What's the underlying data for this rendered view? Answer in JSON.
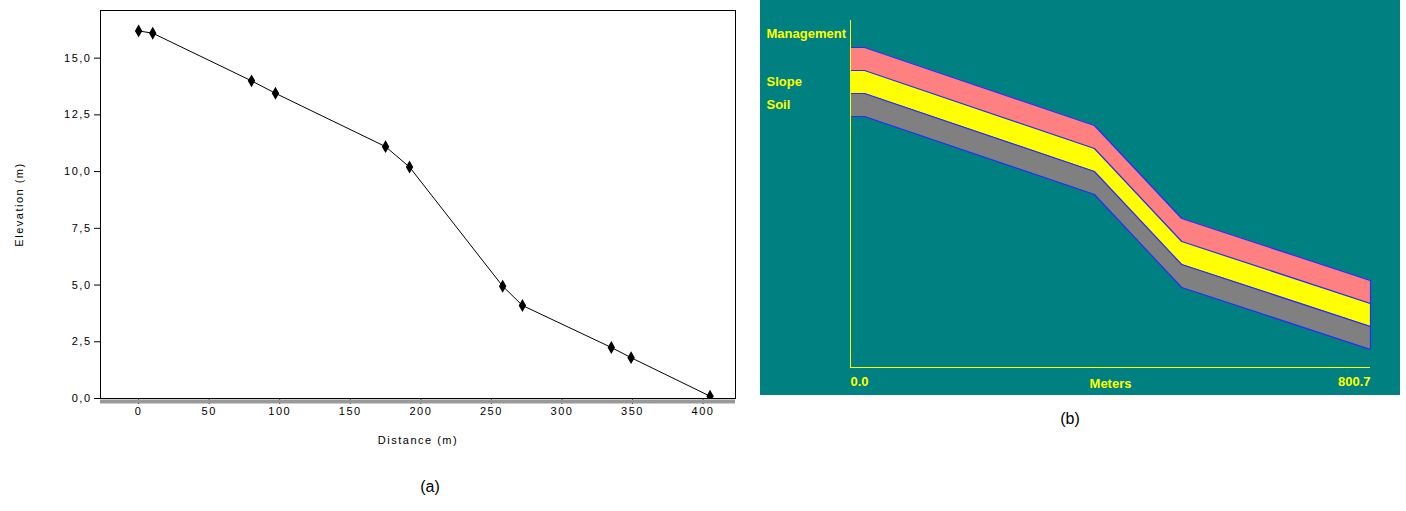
{
  "chart_data": [
    {
      "type": "line",
      "panel": "(a)",
      "color": "#000000",
      "marker": "diamond",
      "grid": false,
      "x": [
        0,
        10,
        80,
        97,
        175,
        192,
        258,
        272,
        335,
        349,
        405
      ],
      "values": [
        16.2,
        16.1,
        14.0,
        13.45,
        11.1,
        10.2,
        4.95,
        4.1,
        2.25,
        1.8,
        0.1
      ],
      "xlim": [
        -27,
        423
      ],
      "ylim": [
        0,
        17.1
      ],
      "xticks": [
        0,
        50,
        100,
        150,
        200,
        250,
        300,
        350,
        400
      ],
      "yticks": [
        {
          "value": 0,
          "label": "0,0"
        },
        {
          "value": 2.5,
          "label": "2,5"
        },
        {
          "value": 5,
          "label": "5,0"
        },
        {
          "value": 7.5,
          "label": "7,5"
        },
        {
          "value": 10,
          "label": "10,0"
        },
        {
          "value": 12.5,
          "label": "12,5"
        },
        {
          "value": 15,
          "label": "15,0"
        }
      ],
      "x_label": "Distance (m)",
      "y_label": "Elevation (m)"
    },
    {
      "type": "area",
      "panel": "(b)",
      "tick_labels": "x",
      "x": [
        0,
        21.6,
        375.6,
        510,
        800.7
      ],
      "series": [
        {
          "name": "Management",
          "color": "#ff8080",
          "values": [
            320,
            320,
            242,
            149,
            87
          ]
        },
        {
          "name": "Slope",
          "color": "#ffff00",
          "values": [
            297,
            297,
            219,
            126,
            64
          ]
        },
        {
          "name": "Soil",
          "color": "#808080",
          "values": [
            274,
            274,
            196,
            103,
            41
          ]
        }
      ],
      "bottom": [
        251,
        251,
        173,
        80,
        18
      ],
      "xlim": [
        0,
        800.7
      ],
      "ylim": [
        0,
        347
      ],
      "xticks": [
        {
          "value": 0,
          "label": "0.0"
        },
        {
          "value": 800.7,
          "label": "800.7"
        }
      ],
      "x_label": "Meters"
    }
  ]
}
